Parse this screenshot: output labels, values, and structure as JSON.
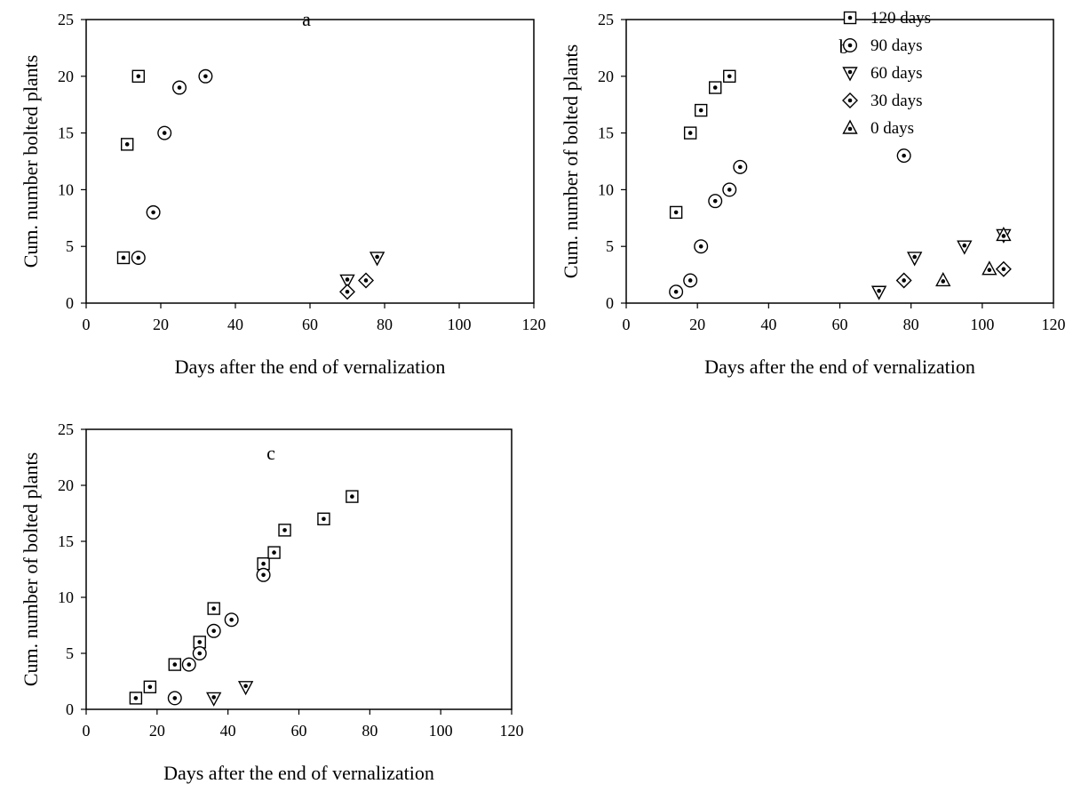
{
  "chart_data": [
    {
      "type": "scatter",
      "panel_label": "a",
      "xlabel": "Days after the end of vernalization",
      "ylabel": "Cum. number bolted plants",
      "xlim": [
        0,
        120
      ],
      "ylim": [
        0,
        25
      ],
      "xticks": [
        0,
        20,
        40,
        60,
        80,
        100,
        120
      ],
      "yticks": [
        0,
        5,
        10,
        15,
        20,
        25
      ],
      "grid": false,
      "series": [
        {
          "marker": "square",
          "points": [
            [
              10,
              4
            ],
            [
              11,
              14
            ],
            [
              14,
              20
            ]
          ]
        },
        {
          "marker": "circle",
          "points": [
            [
              14,
              4
            ],
            [
              18,
              8
            ],
            [
              21,
              15
            ],
            [
              25,
              19
            ],
            [
              32,
              20
            ]
          ]
        },
        {
          "marker": "triangle-down",
          "points": [
            [
              70,
              2
            ],
            [
              78,
              4
            ]
          ]
        },
        {
          "marker": "diamond",
          "points": [
            [
              70,
              1
            ],
            [
              75,
              2
            ]
          ]
        }
      ]
    },
    {
      "type": "scatter",
      "panel_label": "b",
      "xlabel": "Days after the end of vernalization",
      "ylabel": "Cum. number of bolted plants",
      "xlim": [
        0,
        120
      ],
      "ylim": [
        0,
        25
      ],
      "xticks": [
        0,
        20,
        40,
        60,
        80,
        100,
        120
      ],
      "yticks": [
        0,
        5,
        10,
        15,
        20,
        25
      ],
      "grid": false,
      "legend": "top-right",
      "series": [
        {
          "name": "120 days",
          "marker": "square",
          "points": [
            [
              14,
              8
            ],
            [
              18,
              15
            ],
            [
              21,
              17
            ],
            [
              25,
              19
            ],
            [
              29,
              20
            ]
          ]
        },
        {
          "name": "90 days",
          "marker": "circle",
          "points": [
            [
              14,
              1
            ],
            [
              18,
              2
            ],
            [
              21,
              5
            ],
            [
              25,
              9
            ],
            [
              29,
              10
            ],
            [
              32,
              12
            ],
            [
              78,
              13
            ]
          ]
        },
        {
          "name": "60 days",
          "marker": "triangle-down",
          "points": [
            [
              71,
              1
            ],
            [
              81,
              4
            ],
            [
              95,
              5
            ],
            [
              106,
              6
            ]
          ]
        },
        {
          "name": "30 days",
          "marker": "diamond",
          "points": [
            [
              78,
              2
            ],
            [
              106,
              3
            ]
          ]
        },
        {
          "name": "0 days",
          "marker": "triangle-up",
          "points": [
            [
              89,
              2
            ],
            [
              102,
              3
            ],
            [
              106,
              6
            ]
          ]
        }
      ]
    },
    {
      "type": "scatter",
      "panel_label": "c",
      "xlabel": "Days after the end of vernalization",
      "ylabel": "Cum. number of bolted plants",
      "xlim": [
        0,
        120
      ],
      "ylim": [
        0,
        25
      ],
      "xticks": [
        0,
        20,
        40,
        60,
        80,
        100,
        120
      ],
      "yticks": [
        0,
        5,
        10,
        15,
        20,
        25
      ],
      "grid": false,
      "series": [
        {
          "marker": "square",
          "points": [
            [
              14,
              1
            ],
            [
              18,
              2
            ],
            [
              25,
              4
            ],
            [
              32,
              6
            ],
            [
              36,
              9
            ],
            [
              50,
              13
            ],
            [
              53,
              14
            ],
            [
              56,
              16
            ],
            [
              67,
              17
            ],
            [
              75,
              19
            ]
          ]
        },
        {
          "marker": "circle",
          "points": [
            [
              25,
              1
            ],
            [
              29,
              4
            ],
            [
              32,
              5
            ],
            [
              36,
              7
            ],
            [
              41,
              8
            ],
            [
              50,
              12
            ]
          ]
        },
        {
          "marker": "triangle-down",
          "points": [
            [
              36,
              1
            ],
            [
              45,
              2
            ]
          ]
        }
      ]
    }
  ]
}
